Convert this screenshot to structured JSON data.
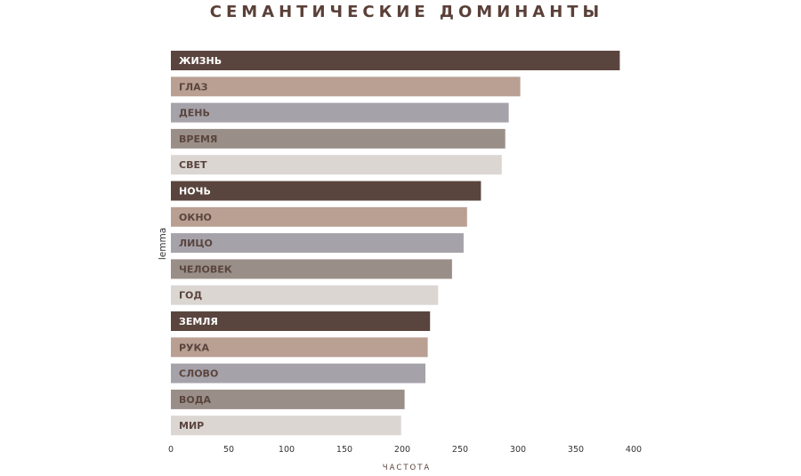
{
  "chart_data": {
    "type": "bar",
    "orientation": "horizontal",
    "title": "СЕМАНТИЧЕСКИЕ ДОМИНАНТЫ",
    "xlabel": "ЧАСТОТА",
    "ylabel": "lemma",
    "xlim": [
      0,
      400
    ],
    "xticks": [
      "0",
      "50",
      "100",
      "150",
      "200",
      "250",
      "300",
      "350",
      "400"
    ],
    "grid": false,
    "categories": [
      "ЖИЗНЬ",
      "ГЛАЗ",
      "ДЕНЬ",
      "ВРЕМЯ",
      "СВЕТ",
      "НОЧЬ",
      "ОКНО",
      "ЛИЦО",
      "ЧЕЛОВЕК",
      "ГОД",
      "ЗЕМЛЯ",
      "РУКА",
      "СЛОВО",
      "ВОДА",
      "МИР"
    ],
    "values": [
      388,
      302,
      292,
      289,
      286,
      268,
      256,
      253,
      243,
      231,
      224,
      222,
      220,
      202,
      199
    ],
    "palette": [
      "#5a453e",
      "#b9a093",
      "#a6a2aa",
      "#9a8f88",
      "#dcd6d3"
    ],
    "label_colors": {
      "dark": "#ffffff",
      "light": "#5a453e"
    }
  }
}
